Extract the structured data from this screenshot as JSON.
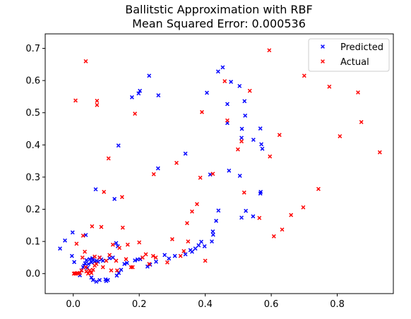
{
  "chart_data": {
    "type": "scatter",
    "title": "Ballitstic Approximation with RBF",
    "subtitle": "Mean Squared Error: 0.000536",
    "xlabel": "",
    "ylabel": "",
    "xlim": [
      -0.085,
      0.97
    ],
    "ylim": [
      -0.062,
      0.745
    ],
    "x_ticks": [
      0.0,
      0.2,
      0.4,
      0.6,
      0.8
    ],
    "x_tick_labels": [
      "0.0",
      "0.2",
      "0.4",
      "0.6",
      "0.8"
    ],
    "y_ticks": [
      0.0,
      0.1,
      0.2,
      0.3,
      0.4,
      0.5,
      0.6,
      0.7
    ],
    "y_tick_labels": [
      "0.0",
      "0.1",
      "0.2",
      "0.3",
      "0.4",
      "0.5",
      "0.6",
      "0.7"
    ],
    "grid": false,
    "legend_position": "top-right",
    "series": [
      {
        "name": "Predicted",
        "color": "#0000ff",
        "marker": "x",
        "points": [
          [
            0.068,
            0.262
          ],
          [
            0.125,
            0.232
          ],
          [
            0.137,
            0.398
          ],
          [
            0.178,
            0.548
          ],
          [
            0.198,
            0.56
          ],
          [
            0.202,
            0.568
          ],
          [
            0.23,
            0.615
          ],
          [
            0.258,
            0.554
          ],
          [
            0.257,
            0.327
          ],
          [
            0.34,
            0.373
          ],
          [
            0.405,
            0.562
          ],
          [
            0.415,
            0.308
          ],
          [
            0.439,
            0.628
          ],
          [
            0.453,
            0.641
          ],
          [
            0.478,
            0.596
          ],
          [
            0.467,
            0.527
          ],
          [
            0.504,
            0.583
          ],
          [
            0.519,
            0.536
          ],
          [
            0.521,
            0.491
          ],
          [
            0.467,
            0.468
          ],
          [
            0.472,
            0.32
          ],
          [
            0.51,
            0.422
          ],
          [
            0.511,
            0.45
          ],
          [
            0.546,
            0.416
          ],
          [
            0.567,
            0.451
          ],
          [
            0.57,
            0.402
          ],
          [
            0.573,
            0.388
          ],
          [
            0.567,
            0.249
          ],
          [
            0.568,
            0.254
          ],
          [
            0.505,
            0.304
          ],
          [
            0.51,
            0.174
          ],
          [
            0.523,
            0.195
          ],
          [
            0.545,
            0.178
          ],
          [
            0.44,
            0.196
          ],
          [
            0.433,
            0.164
          ],
          [
            0.423,
            0.131
          ],
          [
            0.424,
            0.121
          ],
          [
            0.42,
            0.1
          ],
          [
            0.388,
            0.099
          ],
          [
            0.398,
            0.085
          ],
          [
            0.38,
            0.088
          ],
          [
            0.37,
            0.078
          ],
          [
            0.36,
            0.068
          ],
          [
            0.355,
            0.073
          ],
          [
            0.34,
            0.06
          ],
          [
            0.308,
            0.055
          ],
          [
            0.29,
            0.047
          ],
          [
            0.277,
            0.058
          ],
          [
            0.251,
            0.037
          ],
          [
            0.233,
            0.028
          ],
          [
            0.225,
            0.022
          ],
          [
            0.203,
            0.045
          ],
          [
            0.195,
            0.044
          ],
          [
            0.187,
            0.041
          ],
          [
            0.163,
            0.033
          ],
          [
            0.155,
            0.03
          ],
          [
            0.145,
            0.012
          ],
          [
            0.138,
            0.002
          ],
          [
            0.132,
            -0.006
          ],
          [
            0.12,
            0.05
          ],
          [
            0.11,
            0.048
          ],
          [
            0.1,
            -0.023
          ],
          [
            0.098,
            -0.018
          ],
          [
            0.09,
            0.04
          ],
          [
            0.085,
            0.044
          ],
          [
            0.08,
            0.05
          ],
          [
            0.075,
            0.037
          ],
          [
            0.071,
            0.04
          ],
          [
            0.065,
            0.038
          ],
          [
            0.06,
            0.042
          ],
          [
            0.058,
            0.048
          ],
          [
            0.055,
            0.035
          ],
          [
            0.05,
            0.045
          ],
          [
            0.046,
            0.03
          ],
          [
            0.043,
            0.018
          ],
          [
            0.04,
            0.042
          ],
          [
            0.036,
            0.032
          ],
          [
            0.033,
            0.025
          ],
          [
            0.03,
            0.02
          ],
          [
            0.025,
            0.01
          ],
          [
            0.02,
            -0.005
          ],
          [
            0.055,
            -0.012
          ],
          [
            0.06,
            -0.02
          ],
          [
            0.07,
            -0.025
          ],
          [
            0.08,
            -0.02
          ],
          [
            -0.004,
            0.055
          ],
          [
            -0.002,
            0.128
          ],
          [
            -0.025,
            0.103
          ],
          [
            -0.04,
            0.078
          ],
          [
            0.003,
            0.036
          ],
          [
            0.038,
            0.12
          ],
          [
            0.105,
            -0.02
          ],
          [
            0.13,
            0.095
          ],
          [
            0.135,
            0.085
          ]
        ]
      },
      {
        "name": "Actual",
        "color": "#ff0000",
        "marker": "x",
        "points": [
          [
            0.007,
            0.538
          ],
          [
            0.038,
            0.66
          ],
          [
            0.072,
            0.537
          ],
          [
            0.072,
            0.524
          ],
          [
            0.107,
            0.358
          ],
          [
            0.093,
            0.254
          ],
          [
            0.148,
            0.238
          ],
          [
            0.187,
            0.497
          ],
          [
            0.244,
            0.309
          ],
          [
            0.313,
            0.344
          ],
          [
            0.39,
            0.502
          ],
          [
            0.423,
            0.31
          ],
          [
            0.459,
            0.598
          ],
          [
            0.467,
            0.476
          ],
          [
            0.499,
            0.386
          ],
          [
            0.51,
            0.411
          ],
          [
            0.518,
            0.252
          ],
          [
            0.535,
            0.568
          ],
          [
            0.564,
            0.173
          ],
          [
            0.594,
            0.694
          ],
          [
            0.596,
            0.364
          ],
          [
            0.625,
            0.431
          ],
          [
            0.608,
            0.116
          ],
          [
            0.633,
            0.137
          ],
          [
            0.66,
            0.182
          ],
          [
            0.697,
            0.206
          ],
          [
            0.7,
            0.615
          ],
          [
            0.743,
            0.263
          ],
          [
            0.776,
            0.581
          ],
          [
            0.808,
            0.427
          ],
          [
            0.863,
            0.563
          ],
          [
            0.873,
            0.471
          ],
          [
            0.929,
            0.377
          ],
          [
            0.385,
            0.298
          ],
          [
            0.375,
            0.216
          ],
          [
            0.36,
            0.193
          ],
          [
            0.345,
            0.157
          ],
          [
            0.348,
            0.1
          ],
          [
            0.335,
            0.07
          ],
          [
            0.325,
            0.055
          ],
          [
            0.3,
            0.107
          ],
          [
            0.285,
            0.035
          ],
          [
            0.25,
            0.05
          ],
          [
            0.242,
            0.055
          ],
          [
            0.23,
            0.03
          ],
          [
            0.22,
            0.06
          ],
          [
            0.21,
            0.05
          ],
          [
            0.2,
            0.097
          ],
          [
            0.175,
            0.02
          ],
          [
            0.16,
            0.045
          ],
          [
            0.15,
            0.143
          ],
          [
            0.14,
            0.08
          ],
          [
            0.13,
            0.04
          ],
          [
            0.12,
            0.09
          ],
          [
            0.11,
            0.058
          ],
          [
            0.1,
            0.04
          ],
          [
            0.09,
            0.02
          ],
          [
            0.085,
            0.145
          ],
          [
            0.08,
            0.05
          ],
          [
            0.07,
            0.03
          ],
          [
            0.065,
            0.025
          ],
          [
            0.06,
            0.012
          ],
          [
            0.057,
            0.147
          ],
          [
            0.055,
            0.002
          ],
          [
            0.05,
            0.01
          ],
          [
            0.045,
            0.0
          ],
          [
            0.04,
            0.007
          ],
          [
            0.038,
            0.02
          ],
          [
            0.035,
            0.068
          ],
          [
            0.03,
            0.118
          ],
          [
            0.028,
            0.05
          ],
          [
            0.025,
            0.01
          ],
          [
            0.02,
            0.002
          ],
          [
            0.015,
            0.0
          ],
          [
            0.012,
            0.002
          ],
          [
            0.008,
            0.0
          ],
          [
            0.005,
            0.001
          ],
          [
            0.002,
            0.0
          ],
          [
            0.01,
            0.093
          ],
          [
            0.065,
            0.053
          ],
          [
            0.115,
            0.01
          ],
          [
            0.133,
            0.01
          ],
          [
            0.165,
            0.09
          ],
          [
            0.4,
            0.04
          ],
          [
            0.18,
            0.02
          ]
        ]
      }
    ]
  }
}
